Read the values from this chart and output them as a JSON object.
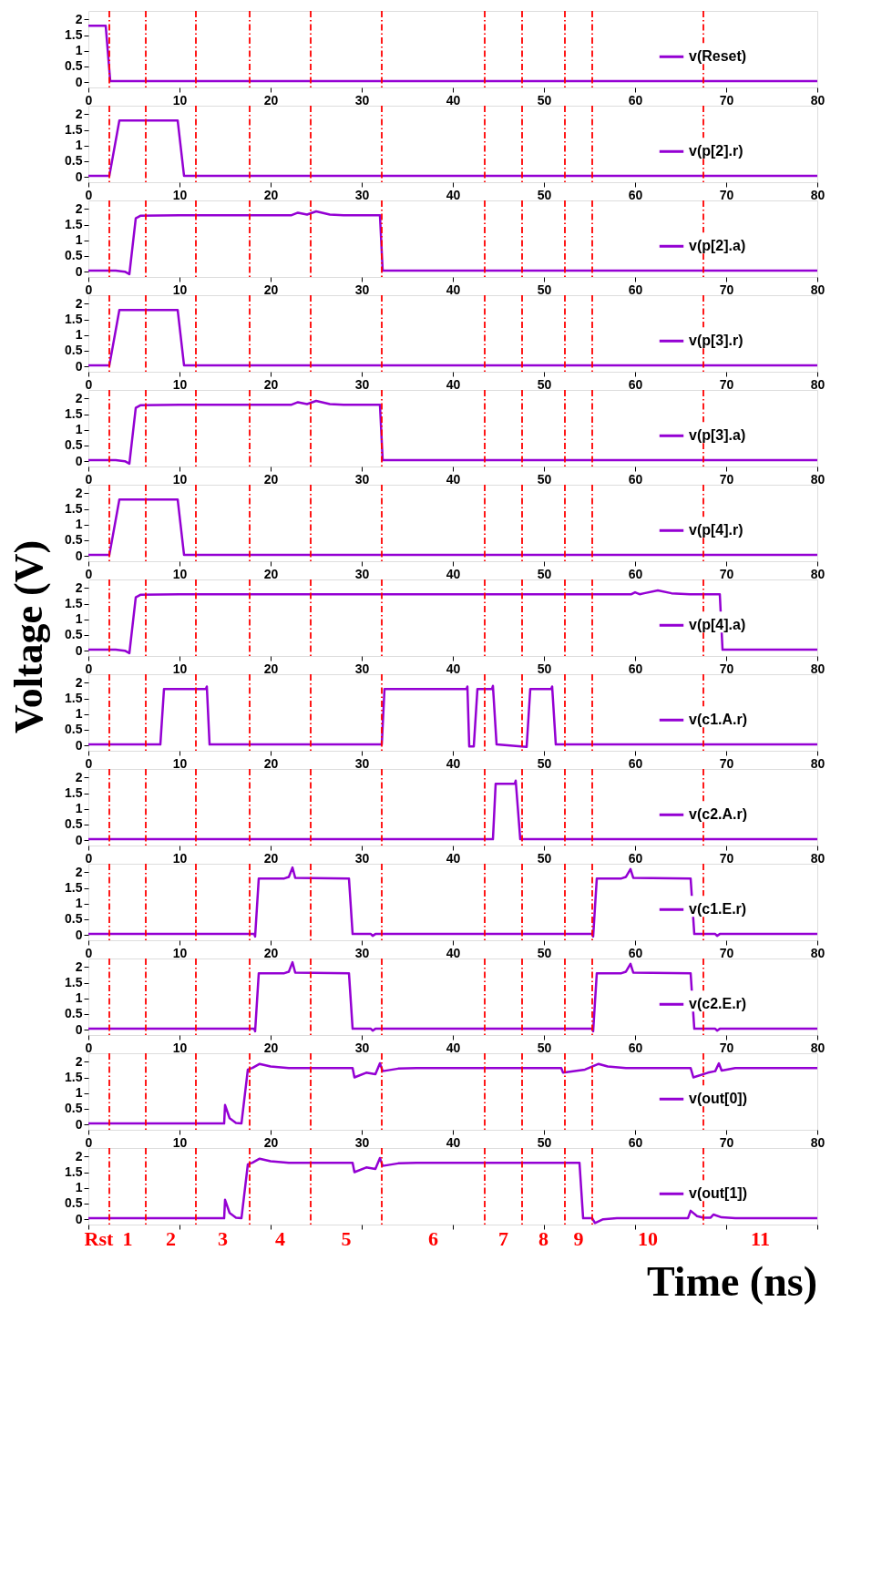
{
  "chart_data": [
    {
      "type": "line",
      "xlim": [
        0,
        80
      ],
      "xticks": [
        0,
        10,
        20,
        30,
        40,
        50,
        60,
        70,
        80
      ],
      "ylim": [
        -0.17,
        2.27
      ],
      "yticks": [
        0,
        0.5,
        1,
        1.5,
        2
      ],
      "legend": "right",
      "line_style": "solid",
      "ref_lines": [
        {
          "axis": "x",
          "value": 2.3,
          "color": "#ff0000",
          "line_style": "dashed"
        },
        {
          "axis": "x",
          "value": 6.3,
          "color": "#ff0000",
          "line_style": "dashed"
        },
        {
          "axis": "x",
          "value": 11.8,
          "color": "#ff0000",
          "line_style": "dashed"
        },
        {
          "axis": "x",
          "value": 17.7,
          "color": "#ff0000",
          "line_style": "dashed"
        },
        {
          "axis": "x",
          "value": 24.4,
          "color": "#ff0000",
          "line_style": "dashed"
        },
        {
          "axis": "x",
          "value": 32.2,
          "color": "#ff0000",
          "line_style": "dashed"
        },
        {
          "axis": "x",
          "value": 43.5,
          "color": "#ff0000",
          "line_style": "dashed"
        },
        {
          "axis": "x",
          "value": 47.6,
          "color": "#ff0000",
          "line_style": "dashed"
        },
        {
          "axis": "x",
          "value": 52.3,
          "color": "#ff0000",
          "line_style": "dashed"
        },
        {
          "axis": "x",
          "value": 55.3,
          "color": "#ff0000",
          "line_style": "dashed"
        },
        {
          "axis": "x",
          "value": 67.5,
          "color": "#ff0000",
          "line_style": "dashed"
        }
      ],
      "series": [
        {
          "name": "v(Reset)",
          "color": "#9400d3",
          "x": [
            0,
            1.9,
            2.4,
            80
          ],
          "values": [
            1.8,
            1.8,
            0.03,
            0.03
          ]
        }
      ]
    },
    {
      "type": "line",
      "xlim": [
        0,
        80
      ],
      "xticks": [
        0,
        10,
        20,
        30,
        40,
        50,
        60,
        70,
        80
      ],
      "ylim": [
        -0.17,
        2.27
      ],
      "yticks": [
        0,
        0.5,
        1,
        1.5,
        2
      ],
      "legend": "right",
      "line_style": "solid",
      "ref_lines": [
        {
          "axis": "x",
          "value": 2.3,
          "color": "#ff0000",
          "line_style": "dashed"
        },
        {
          "axis": "x",
          "value": 6.3,
          "color": "#ff0000",
          "line_style": "dashed"
        },
        {
          "axis": "x",
          "value": 11.8,
          "color": "#ff0000",
          "line_style": "dashed"
        },
        {
          "axis": "x",
          "value": 17.7,
          "color": "#ff0000",
          "line_style": "dashed"
        },
        {
          "axis": "x",
          "value": 24.4,
          "color": "#ff0000",
          "line_style": "dashed"
        },
        {
          "axis": "x",
          "value": 32.2,
          "color": "#ff0000",
          "line_style": "dashed"
        },
        {
          "axis": "x",
          "value": 43.5,
          "color": "#ff0000",
          "line_style": "dashed"
        },
        {
          "axis": "x",
          "value": 47.6,
          "color": "#ff0000",
          "line_style": "dashed"
        },
        {
          "axis": "x",
          "value": 52.3,
          "color": "#ff0000",
          "line_style": "dashed"
        },
        {
          "axis": "x",
          "value": 55.3,
          "color": "#ff0000",
          "line_style": "dashed"
        },
        {
          "axis": "x",
          "value": 67.5,
          "color": "#ff0000",
          "line_style": "dashed"
        }
      ],
      "series": [
        {
          "name": "v(p[2].r)",
          "color": "#9400d3",
          "x": [
            0,
            2.3,
            3.4,
            9.8,
            10.5,
            80
          ],
          "values": [
            0.03,
            0.03,
            1.8,
            1.8,
            0.03,
            0.03
          ]
        }
      ]
    },
    {
      "type": "line",
      "xlim": [
        0,
        80
      ],
      "xticks": [
        0,
        10,
        20,
        30,
        40,
        50,
        60,
        70,
        80
      ],
      "ylim": [
        -0.17,
        2.27
      ],
      "yticks": [
        0,
        0.5,
        1,
        1.5,
        2
      ],
      "legend": "right",
      "line_style": "solid",
      "ref_lines": [
        {
          "axis": "x",
          "value": 2.3,
          "color": "#ff0000",
          "line_style": "dashed"
        },
        {
          "axis": "x",
          "value": 6.3,
          "color": "#ff0000",
          "line_style": "dashed"
        },
        {
          "axis": "x",
          "value": 11.8,
          "color": "#ff0000",
          "line_style": "dashed"
        },
        {
          "axis": "x",
          "value": 17.7,
          "color": "#ff0000",
          "line_style": "dashed"
        },
        {
          "axis": "x",
          "value": 24.4,
          "color": "#ff0000",
          "line_style": "dashed"
        },
        {
          "axis": "x",
          "value": 32.2,
          "color": "#ff0000",
          "line_style": "dashed"
        },
        {
          "axis": "x",
          "value": 43.5,
          "color": "#ff0000",
          "line_style": "dashed"
        },
        {
          "axis": "x",
          "value": 47.6,
          "color": "#ff0000",
          "line_style": "dashed"
        },
        {
          "axis": "x",
          "value": 52.3,
          "color": "#ff0000",
          "line_style": "dashed"
        },
        {
          "axis": "x",
          "value": 55.3,
          "color": "#ff0000",
          "line_style": "dashed"
        },
        {
          "axis": "x",
          "value": 67.5,
          "color": "#ff0000",
          "line_style": "dashed"
        }
      ],
      "series": [
        {
          "name": "v(p[2].a)",
          "color": "#9400d3",
          "x": [
            0,
            3.0,
            4.0,
            4.5,
            5.2,
            5.7,
            10,
            22.3,
            23.0,
            24.0,
            25.0,
            26.5,
            28,
            32.0,
            32.3,
            80
          ],
          "values": [
            0.03,
            0.03,
            0.0,
            -0.08,
            1.7,
            1.78,
            1.8,
            1.8,
            1.88,
            1.82,
            1.92,
            1.82,
            1.8,
            1.8,
            0.03,
            0.03
          ]
        }
      ]
    },
    {
      "type": "line",
      "xlim": [
        0,
        80
      ],
      "xticks": [
        0,
        10,
        20,
        30,
        40,
        50,
        60,
        70,
        80
      ],
      "ylim": [
        -0.17,
        2.27
      ],
      "yticks": [
        0,
        0.5,
        1,
        1.5,
        2
      ],
      "legend": "right",
      "line_style": "solid",
      "ref_lines": [
        {
          "axis": "x",
          "value": 2.3,
          "color": "#ff0000",
          "line_style": "dashed"
        },
        {
          "axis": "x",
          "value": 6.3,
          "color": "#ff0000",
          "line_style": "dashed"
        },
        {
          "axis": "x",
          "value": 11.8,
          "color": "#ff0000",
          "line_style": "dashed"
        },
        {
          "axis": "x",
          "value": 17.7,
          "color": "#ff0000",
          "line_style": "dashed"
        },
        {
          "axis": "x",
          "value": 24.4,
          "color": "#ff0000",
          "line_style": "dashed"
        },
        {
          "axis": "x",
          "value": 32.2,
          "color": "#ff0000",
          "line_style": "dashed"
        },
        {
          "axis": "x",
          "value": 43.5,
          "color": "#ff0000",
          "line_style": "dashed"
        },
        {
          "axis": "x",
          "value": 47.6,
          "color": "#ff0000",
          "line_style": "dashed"
        },
        {
          "axis": "x",
          "value": 52.3,
          "color": "#ff0000",
          "line_style": "dashed"
        },
        {
          "axis": "x",
          "value": 55.3,
          "color": "#ff0000",
          "line_style": "dashed"
        },
        {
          "axis": "x",
          "value": 67.5,
          "color": "#ff0000",
          "line_style": "dashed"
        }
      ],
      "series": [
        {
          "name": "v(p[3].r)",
          "color": "#9400d3",
          "x": [
            0,
            2.3,
            3.4,
            9.8,
            10.5,
            80
          ],
          "values": [
            0.03,
            0.03,
            1.8,
            1.8,
            0.03,
            0.03
          ]
        }
      ]
    },
    {
      "type": "line",
      "xlim": [
        0,
        80
      ],
      "xticks": [
        0,
        10,
        20,
        30,
        40,
        50,
        60,
        70,
        80
      ],
      "ylim": [
        -0.17,
        2.27
      ],
      "yticks": [
        0,
        0.5,
        1,
        1.5,
        2
      ],
      "legend": "right",
      "line_style": "solid",
      "ref_lines": [
        {
          "axis": "x",
          "value": 2.3,
          "color": "#ff0000",
          "line_style": "dashed"
        },
        {
          "axis": "x",
          "value": 6.3,
          "color": "#ff0000",
          "line_style": "dashed"
        },
        {
          "axis": "x",
          "value": 11.8,
          "color": "#ff0000",
          "line_style": "dashed"
        },
        {
          "axis": "x",
          "value": 17.7,
          "color": "#ff0000",
          "line_style": "dashed"
        },
        {
          "axis": "x",
          "value": 24.4,
          "color": "#ff0000",
          "line_style": "dashed"
        },
        {
          "axis": "x",
          "value": 32.2,
          "color": "#ff0000",
          "line_style": "dashed"
        },
        {
          "axis": "x",
          "value": 43.5,
          "color": "#ff0000",
          "line_style": "dashed"
        },
        {
          "axis": "x",
          "value": 47.6,
          "color": "#ff0000",
          "line_style": "dashed"
        },
        {
          "axis": "x",
          "value": 52.3,
          "color": "#ff0000",
          "line_style": "dashed"
        },
        {
          "axis": "x",
          "value": 55.3,
          "color": "#ff0000",
          "line_style": "dashed"
        },
        {
          "axis": "x",
          "value": 67.5,
          "color": "#ff0000",
          "line_style": "dashed"
        }
      ],
      "series": [
        {
          "name": "v(p[3].a)",
          "color": "#9400d3",
          "x": [
            0,
            3.0,
            4.0,
            4.5,
            5.2,
            5.7,
            10,
            22.3,
            23.0,
            24.0,
            25.0,
            26.5,
            28,
            32.0,
            32.3,
            80
          ],
          "values": [
            0.03,
            0.03,
            0.0,
            -0.08,
            1.7,
            1.78,
            1.8,
            1.8,
            1.88,
            1.82,
            1.92,
            1.82,
            1.8,
            1.8,
            0.03,
            0.03
          ]
        }
      ]
    },
    {
      "type": "line",
      "xlim": [
        0,
        80
      ],
      "xticks": [
        0,
        10,
        20,
        30,
        40,
        50,
        60,
        70,
        80
      ],
      "ylim": [
        -0.17,
        2.27
      ],
      "yticks": [
        0,
        0.5,
        1,
        1.5,
        2
      ],
      "legend": "right",
      "line_style": "solid",
      "ref_lines": [
        {
          "axis": "x",
          "value": 2.3,
          "color": "#ff0000",
          "line_style": "dashed"
        },
        {
          "axis": "x",
          "value": 6.3,
          "color": "#ff0000",
          "line_style": "dashed"
        },
        {
          "axis": "x",
          "value": 11.8,
          "color": "#ff0000",
          "line_style": "dashed"
        },
        {
          "axis": "x",
          "value": 17.7,
          "color": "#ff0000",
          "line_style": "dashed"
        },
        {
          "axis": "x",
          "value": 24.4,
          "color": "#ff0000",
          "line_style": "dashed"
        },
        {
          "axis": "x",
          "value": 32.2,
          "color": "#ff0000",
          "line_style": "dashed"
        },
        {
          "axis": "x",
          "value": 43.5,
          "color": "#ff0000",
          "line_style": "dashed"
        },
        {
          "axis": "x",
          "value": 47.6,
          "color": "#ff0000",
          "line_style": "dashed"
        },
        {
          "axis": "x",
          "value": 52.3,
          "color": "#ff0000",
          "line_style": "dashed"
        },
        {
          "axis": "x",
          "value": 55.3,
          "color": "#ff0000",
          "line_style": "dashed"
        },
        {
          "axis": "x",
          "value": 67.5,
          "color": "#ff0000",
          "line_style": "dashed"
        }
      ],
      "series": [
        {
          "name": "v(p[4].r)",
          "color": "#9400d3",
          "x": [
            0,
            2.3,
            3.4,
            9.8,
            10.5,
            80
          ],
          "values": [
            0.03,
            0.03,
            1.8,
            1.8,
            0.03,
            0.03
          ]
        }
      ]
    },
    {
      "type": "line",
      "xlim": [
        0,
        80
      ],
      "xticks": [
        0,
        10,
        20,
        30,
        40,
        50,
        60,
        70,
        80
      ],
      "ylim": [
        -0.17,
        2.27
      ],
      "yticks": [
        0,
        0.5,
        1,
        1.5,
        2
      ],
      "ylabel": "Voltage (V)",
      "legend": "right",
      "line_style": "solid",
      "ref_lines": [
        {
          "axis": "x",
          "value": 2.3,
          "color": "#ff0000",
          "line_style": "dashed"
        },
        {
          "axis": "x",
          "value": 6.3,
          "color": "#ff0000",
          "line_style": "dashed"
        },
        {
          "axis": "x",
          "value": 11.8,
          "color": "#ff0000",
          "line_style": "dashed"
        },
        {
          "axis": "x",
          "value": 17.7,
          "color": "#ff0000",
          "line_style": "dashed"
        },
        {
          "axis": "x",
          "value": 24.4,
          "color": "#ff0000",
          "line_style": "dashed"
        },
        {
          "axis": "x",
          "value": 32.2,
          "color": "#ff0000",
          "line_style": "dashed"
        },
        {
          "axis": "x",
          "value": 43.5,
          "color": "#ff0000",
          "line_style": "dashed"
        },
        {
          "axis": "x",
          "value": 47.6,
          "color": "#ff0000",
          "line_style": "dashed"
        },
        {
          "axis": "x",
          "value": 52.3,
          "color": "#ff0000",
          "line_style": "dashed"
        },
        {
          "axis": "x",
          "value": 55.3,
          "color": "#ff0000",
          "line_style": "dashed"
        },
        {
          "axis": "x",
          "value": 67.5,
          "color": "#ff0000",
          "line_style": "dashed"
        }
      ],
      "series": [
        {
          "name": "v(p[4].a)",
          "color": "#9400d3",
          "x": [
            0,
            3.0,
            4.0,
            4.5,
            5.2,
            5.7,
            10,
            59.6,
            60.0,
            60.5,
            61,
            62.5,
            64,
            66,
            69.3,
            69.6,
            80
          ],
          "values": [
            0.03,
            0.03,
            0.0,
            -0.08,
            1.7,
            1.78,
            1.8,
            1.8,
            1.86,
            1.8,
            1.83,
            1.92,
            1.83,
            1.8,
            1.8,
            0.03,
            0.03
          ]
        }
      ]
    },
    {
      "type": "line",
      "xlim": [
        0,
        80
      ],
      "xticks": [
        0,
        10,
        20,
        30,
        40,
        50,
        60,
        70,
        80
      ],
      "ylim": [
        -0.17,
        2.27
      ],
      "yticks": [
        0,
        0.5,
        1,
        1.5,
        2
      ],
      "legend": "right",
      "line_style": "solid",
      "ref_lines": [
        {
          "axis": "x",
          "value": 2.3,
          "color": "#ff0000",
          "line_style": "dashed"
        },
        {
          "axis": "x",
          "value": 6.3,
          "color": "#ff0000",
          "line_style": "dashed"
        },
        {
          "axis": "x",
          "value": 11.8,
          "color": "#ff0000",
          "line_style": "dashed"
        },
        {
          "axis": "x",
          "value": 17.7,
          "color": "#ff0000",
          "line_style": "dashed"
        },
        {
          "axis": "x",
          "value": 24.4,
          "color": "#ff0000",
          "line_style": "dashed"
        },
        {
          "axis": "x",
          "value": 32.2,
          "color": "#ff0000",
          "line_style": "dashed"
        },
        {
          "axis": "x",
          "value": 43.5,
          "color": "#ff0000",
          "line_style": "dashed"
        },
        {
          "axis": "x",
          "value": 47.6,
          "color": "#ff0000",
          "line_style": "dashed"
        },
        {
          "axis": "x",
          "value": 52.3,
          "color": "#ff0000",
          "line_style": "dashed"
        },
        {
          "axis": "x",
          "value": 55.3,
          "color": "#ff0000",
          "line_style": "dashed"
        },
        {
          "axis": "x",
          "value": 67.5,
          "color": "#ff0000",
          "line_style": "dashed"
        }
      ],
      "series": [
        {
          "name": "v(c1.A.r)",
          "color": "#9400d3",
          "x": [
            0,
            7.9,
            8.3,
            12.9,
            13.0,
            13.3,
            32.2,
            32.5,
            41.5,
            41.6,
            41.8,
            42.3,
            42.7,
            44.3,
            44.4,
            44.8,
            48.1,
            48.5,
            50.8,
            50.9,
            51.3,
            80
          ],
          "values": [
            0.03,
            0.03,
            1.8,
            1.8,
            1.88,
            0.03,
            0.03,
            1.8,
            1.8,
            1.88,
            -0.03,
            -0.03,
            1.8,
            1.8,
            1.9,
            0.03,
            -0.05,
            1.8,
            1.8,
            1.88,
            0.03,
            0.03
          ]
        }
      ]
    },
    {
      "type": "line",
      "xlim": [
        0,
        80
      ],
      "xticks": [
        0,
        10,
        20,
        30,
        40,
        50,
        60,
        70,
        80
      ],
      "ylim": [
        -0.17,
        2.27
      ],
      "yticks": [
        0,
        0.5,
        1,
        1.5,
        2
      ],
      "legend": "right",
      "line_style": "solid",
      "ref_lines": [
        {
          "axis": "x",
          "value": 2.3,
          "color": "#ff0000",
          "line_style": "dashed"
        },
        {
          "axis": "x",
          "value": 6.3,
          "color": "#ff0000",
          "line_style": "dashed"
        },
        {
          "axis": "x",
          "value": 11.8,
          "color": "#ff0000",
          "line_style": "dashed"
        },
        {
          "axis": "x",
          "value": 17.7,
          "color": "#ff0000",
          "line_style": "dashed"
        },
        {
          "axis": "x",
          "value": 24.4,
          "color": "#ff0000",
          "line_style": "dashed"
        },
        {
          "axis": "x",
          "value": 32.2,
          "color": "#ff0000",
          "line_style": "dashed"
        },
        {
          "axis": "x",
          "value": 43.5,
          "color": "#ff0000",
          "line_style": "dashed"
        },
        {
          "axis": "x",
          "value": 47.6,
          "color": "#ff0000",
          "line_style": "dashed"
        },
        {
          "axis": "x",
          "value": 52.3,
          "color": "#ff0000",
          "line_style": "dashed"
        },
        {
          "axis": "x",
          "value": 55.3,
          "color": "#ff0000",
          "line_style": "dashed"
        },
        {
          "axis": "x",
          "value": 67.5,
          "color": "#ff0000",
          "line_style": "dashed"
        }
      ],
      "series": [
        {
          "name": "v(c2.A.r)",
          "color": "#9400d3",
          "x": [
            0,
            44.4,
            44.7,
            46.8,
            46.9,
            47.4,
            80
          ],
          "values": [
            0.03,
            0.03,
            1.8,
            1.8,
            1.9,
            0.03,
            0.03
          ]
        }
      ]
    },
    {
      "type": "line",
      "xlim": [
        0,
        80
      ],
      "xticks": [
        0,
        10,
        20,
        30,
        40,
        50,
        60,
        70,
        80
      ],
      "ylim": [
        -0.17,
        2.27
      ],
      "yticks": [
        0,
        0.5,
        1,
        1.5,
        2
      ],
      "legend": "right",
      "line_style": "solid",
      "ref_lines": [
        {
          "axis": "x",
          "value": 2.3,
          "color": "#ff0000",
          "line_style": "dashed"
        },
        {
          "axis": "x",
          "value": 6.3,
          "color": "#ff0000",
          "line_style": "dashed"
        },
        {
          "axis": "x",
          "value": 11.8,
          "color": "#ff0000",
          "line_style": "dashed"
        },
        {
          "axis": "x",
          "value": 17.7,
          "color": "#ff0000",
          "line_style": "dashed"
        },
        {
          "axis": "x",
          "value": 24.4,
          "color": "#ff0000",
          "line_style": "dashed"
        },
        {
          "axis": "x",
          "value": 32.2,
          "color": "#ff0000",
          "line_style": "dashed"
        },
        {
          "axis": "x",
          "value": 43.5,
          "color": "#ff0000",
          "line_style": "dashed"
        },
        {
          "axis": "x",
          "value": 47.6,
          "color": "#ff0000",
          "line_style": "dashed"
        },
        {
          "axis": "x",
          "value": 52.3,
          "color": "#ff0000",
          "line_style": "dashed"
        },
        {
          "axis": "x",
          "value": 55.3,
          "color": "#ff0000",
          "line_style": "dashed"
        },
        {
          "axis": "x",
          "value": 67.5,
          "color": "#ff0000",
          "line_style": "dashed"
        }
      ],
      "series": [
        {
          "name": "v(c1.E.r)",
          "color": "#9400d3",
          "x": [
            0,
            18.2,
            18.3,
            18.7,
            21.5,
            22.0,
            22.4,
            22.7,
            28.6,
            29.0,
            31.0,
            31.2,
            31.5,
            55.3,
            55.4,
            55.8,
            58.5,
            59.0,
            59.5,
            59.8,
            66.1,
            66.5,
            68.8,
            69.0,
            69.3,
            80
          ],
          "values": [
            0.03,
            0.03,
            -0.05,
            1.8,
            1.8,
            1.85,
            2.15,
            1.82,
            1.8,
            0.03,
            0.03,
            -0.03,
            0.03,
            0.03,
            -0.05,
            1.8,
            1.8,
            1.85,
            2.1,
            1.82,
            1.8,
            0.03,
            0.03,
            -0.03,
            0.03,
            0.03
          ]
        }
      ]
    },
    {
      "type": "line",
      "xlim": [
        0,
        80
      ],
      "xticks": [
        0,
        10,
        20,
        30,
        40,
        50,
        60,
        70,
        80
      ],
      "ylim": [
        -0.17,
        2.27
      ],
      "yticks": [
        0,
        0.5,
        1,
        1.5,
        2
      ],
      "legend": "right",
      "line_style": "solid",
      "ref_lines": [
        {
          "axis": "x",
          "value": 2.3,
          "color": "#ff0000",
          "line_style": "dashed"
        },
        {
          "axis": "x",
          "value": 6.3,
          "color": "#ff0000",
          "line_style": "dashed"
        },
        {
          "axis": "x",
          "value": 11.8,
          "color": "#ff0000",
          "line_style": "dashed"
        },
        {
          "axis": "x",
          "value": 17.7,
          "color": "#ff0000",
          "line_style": "dashed"
        },
        {
          "axis": "x",
          "value": 24.4,
          "color": "#ff0000",
          "line_style": "dashed"
        },
        {
          "axis": "x",
          "value": 32.2,
          "color": "#ff0000",
          "line_style": "dashed"
        },
        {
          "axis": "x",
          "value": 43.5,
          "color": "#ff0000",
          "line_style": "dashed"
        },
        {
          "axis": "x",
          "value": 47.6,
          "color": "#ff0000",
          "line_style": "dashed"
        },
        {
          "axis": "x",
          "value": 52.3,
          "color": "#ff0000",
          "line_style": "dashed"
        },
        {
          "axis": "x",
          "value": 55.3,
          "color": "#ff0000",
          "line_style": "dashed"
        },
        {
          "axis": "x",
          "value": 67.5,
          "color": "#ff0000",
          "line_style": "dashed"
        }
      ],
      "series": [
        {
          "name": "v(c2.E.r)",
          "color": "#9400d3",
          "x": [
            0,
            18.2,
            18.3,
            18.7,
            21.5,
            22.0,
            22.4,
            22.7,
            28.6,
            29.0,
            31.0,
            31.2,
            31.5,
            55.3,
            55.4,
            55.8,
            58.5,
            59.0,
            59.5,
            59.8,
            66.1,
            66.5,
            68.8,
            69.0,
            69.3,
            80
          ],
          "values": [
            0.03,
            0.03,
            -0.05,
            1.8,
            1.8,
            1.85,
            2.15,
            1.82,
            1.8,
            0.03,
            0.03,
            -0.03,
            0.03,
            0.03,
            -0.05,
            1.8,
            1.8,
            1.85,
            2.1,
            1.82,
            1.8,
            0.03,
            0.03,
            -0.03,
            0.03,
            0.03
          ]
        }
      ]
    },
    {
      "type": "line",
      "xlim": [
        0,
        80
      ],
      "xticks": [
        0,
        10,
        20,
        30,
        40,
        50,
        60,
        70,
        80
      ],
      "ylim": [
        -0.17,
        2.27
      ],
      "yticks": [
        0,
        0.5,
        1,
        1.5,
        2
      ],
      "legend": "right",
      "line_style": "solid",
      "ref_lines": [
        {
          "axis": "x",
          "value": 2.3,
          "color": "#ff0000",
          "line_style": "dashed"
        },
        {
          "axis": "x",
          "value": 6.3,
          "color": "#ff0000",
          "line_style": "dashed"
        },
        {
          "axis": "x",
          "value": 11.8,
          "color": "#ff0000",
          "line_style": "dashed"
        },
        {
          "axis": "x",
          "value": 17.7,
          "color": "#ff0000",
          "line_style": "dashed"
        },
        {
          "axis": "x",
          "value": 24.4,
          "color": "#ff0000",
          "line_style": "dashed"
        },
        {
          "axis": "x",
          "value": 32.2,
          "color": "#ff0000",
          "line_style": "dashed"
        },
        {
          "axis": "x",
          "value": 43.5,
          "color": "#ff0000",
          "line_style": "dashed"
        },
        {
          "axis": "x",
          "value": 47.6,
          "color": "#ff0000",
          "line_style": "dashed"
        },
        {
          "axis": "x",
          "value": 52.3,
          "color": "#ff0000",
          "line_style": "dashed"
        },
        {
          "axis": "x",
          "value": 55.3,
          "color": "#ff0000",
          "line_style": "dashed"
        },
        {
          "axis": "x",
          "value": 67.5,
          "color": "#ff0000",
          "line_style": "dashed"
        }
      ],
      "series": [
        {
          "name": "v(out[0])",
          "color": "#9400d3",
          "x": [
            0,
            14.9,
            15.0,
            15.5,
            16.2,
            16.8,
            17.5,
            18.0,
            18.8,
            20,
            22,
            29.0,
            29.2,
            30.5,
            31.5,
            32.0,
            32.3,
            34,
            36,
            51.9,
            52.1,
            54.5,
            56.0,
            57,
            59,
            66.1,
            66.4,
            68,
            68.8,
            69.2,
            69.5,
            71,
            80
          ],
          "values": [
            0.03,
            0.03,
            0.62,
            0.2,
            0.05,
            0.03,
            1.75,
            1.8,
            1.93,
            1.85,
            1.8,
            1.8,
            1.5,
            1.65,
            1.6,
            1.95,
            1.7,
            1.78,
            1.8,
            1.8,
            1.65,
            1.75,
            1.93,
            1.85,
            1.8,
            1.8,
            1.5,
            1.65,
            1.7,
            1.95,
            1.72,
            1.8,
            1.8
          ]
        }
      ]
    },
    {
      "type": "line",
      "xlim": [
        0,
        80
      ],
      "xticks": [
        0,
        10,
        20,
        30,
        40,
        50,
        60,
        70,
        80
      ],
      "ylim": [
        -0.17,
        2.27
      ],
      "yticks": [
        0,
        0.5,
        1,
        1.5,
        2
      ],
      "tick_labels": "y",
      "xlabel": "Time (ns)",
      "legend": "right",
      "line_style": "solid",
      "ref_lines": [
        {
          "axis": "x",
          "value": 2.3,
          "color": "#ff0000",
          "line_style": "dashed"
        },
        {
          "axis": "x",
          "value": 6.3,
          "color": "#ff0000",
          "line_style": "dashed"
        },
        {
          "axis": "x",
          "value": 11.8,
          "color": "#ff0000",
          "line_style": "dashed"
        },
        {
          "axis": "x",
          "value": 17.7,
          "color": "#ff0000",
          "line_style": "dashed"
        },
        {
          "axis": "x",
          "value": 24.4,
          "color": "#ff0000",
          "line_style": "dashed"
        },
        {
          "axis": "x",
          "value": 32.2,
          "color": "#ff0000",
          "line_style": "dashed"
        },
        {
          "axis": "x",
          "value": 43.5,
          "color": "#ff0000",
          "line_style": "dashed"
        },
        {
          "axis": "x",
          "value": 47.6,
          "color": "#ff0000",
          "line_style": "dashed"
        },
        {
          "axis": "x",
          "value": 52.3,
          "color": "#ff0000",
          "line_style": "dashed"
        },
        {
          "axis": "x",
          "value": 55.3,
          "color": "#ff0000",
          "line_style": "dashed"
        },
        {
          "axis": "x",
          "value": 67.5,
          "color": "#ff0000",
          "line_style": "dashed"
        }
      ],
      "annotations": [
        "Rst",
        "1",
        "2",
        "3",
        "4",
        "5",
        "6",
        "7",
        "8",
        "9",
        "10",
        "11"
      ],
      "series": [
        {
          "name": "v(out[1])",
          "color": "#9400d3",
          "x": [
            0,
            14.9,
            15.0,
            15.5,
            16.2,
            16.8,
            17.5,
            18.0,
            18.8,
            20,
            22,
            29.0,
            29.2,
            30.5,
            31.5,
            32.0,
            32.3,
            34,
            36,
            53.9,
            54.3,
            55.3,
            55.6,
            56.5,
            58,
            65.8,
            66.1,
            66.8,
            67.5,
            68.3,
            68.6,
            69.5,
            71,
            80
          ],
          "values": [
            0.03,
            0.03,
            0.62,
            0.2,
            0.05,
            0.03,
            1.75,
            1.8,
            1.93,
            1.85,
            1.8,
            1.8,
            1.5,
            1.65,
            1.6,
            1.95,
            1.7,
            1.78,
            1.8,
            1.8,
            0.03,
            0.03,
            -0.12,
            0.0,
            0.03,
            0.03,
            0.27,
            0.1,
            0.05,
            0.05,
            0.15,
            0.06,
            0.03,
            0.03
          ]
        }
      ]
    }
  ]
}
